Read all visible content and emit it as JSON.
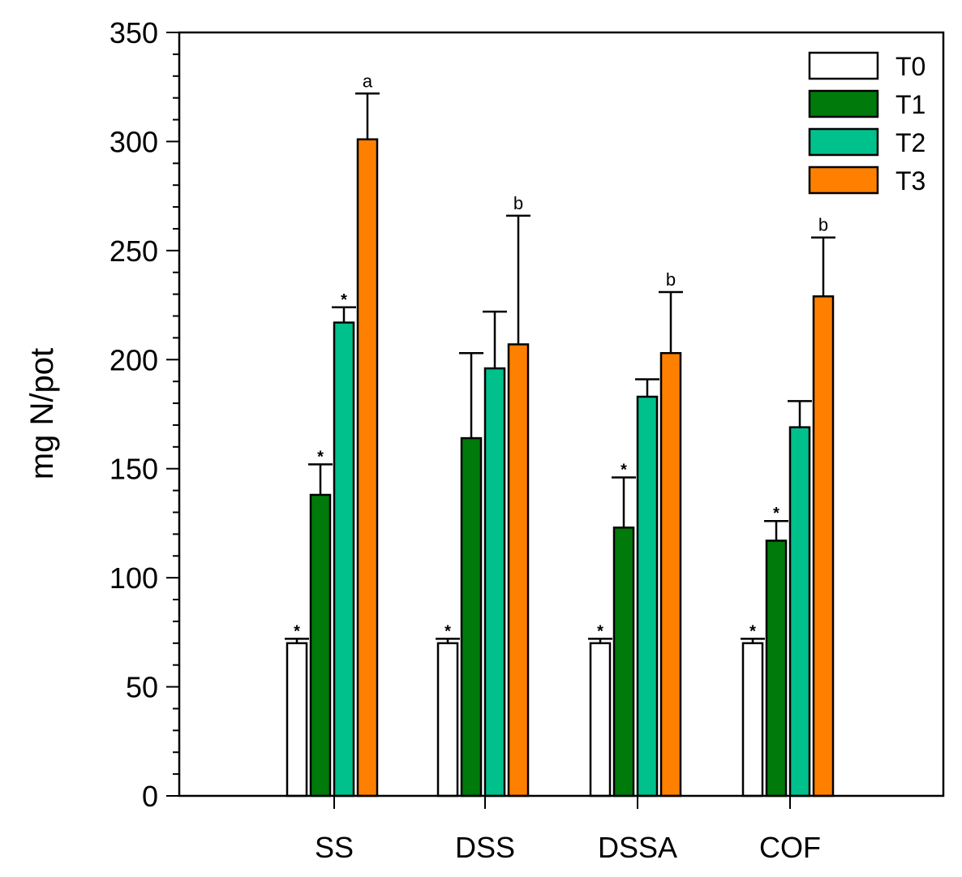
{
  "chart_data": {
    "type": "bar",
    "title": "",
    "xlabel": "",
    "ylabel": "mg N/pot",
    "ylim": [
      0,
      350
    ],
    "yticks": [
      0,
      50,
      100,
      150,
      200,
      250,
      300,
      350
    ],
    "categories": [
      "SS",
      "DSS",
      "DSSA",
      "COF"
    ],
    "legend_position": "top-right",
    "series": [
      {
        "name": "T0",
        "color": "#ffffff",
        "values": [
          70,
          70,
          70,
          70
        ],
        "errors": [
          2,
          2,
          2,
          2
        ],
        "annotations": [
          "*",
          "*",
          "*",
          "*"
        ]
      },
      {
        "name": "T1",
        "color": "#007a0a",
        "values": [
          138,
          164,
          123,
          117
        ],
        "errors": [
          14,
          39,
          23,
          9
        ],
        "annotations": [
          "*",
          "",
          "*",
          "*"
        ]
      },
      {
        "name": "T2",
        "color": "#00c08c",
        "values": [
          217,
          196,
          183,
          169
        ],
        "errors": [
          7,
          26,
          8,
          12
        ],
        "annotations": [
          "*",
          "",
          "",
          ""
        ]
      },
      {
        "name": "T3",
        "color": "#ff8000",
        "values": [
          301,
          207,
          203,
          229
        ],
        "errors": [
          21,
          59,
          28,
          27
        ],
        "annotations": [
          "a",
          "b",
          "b",
          "b"
        ]
      }
    ]
  }
}
